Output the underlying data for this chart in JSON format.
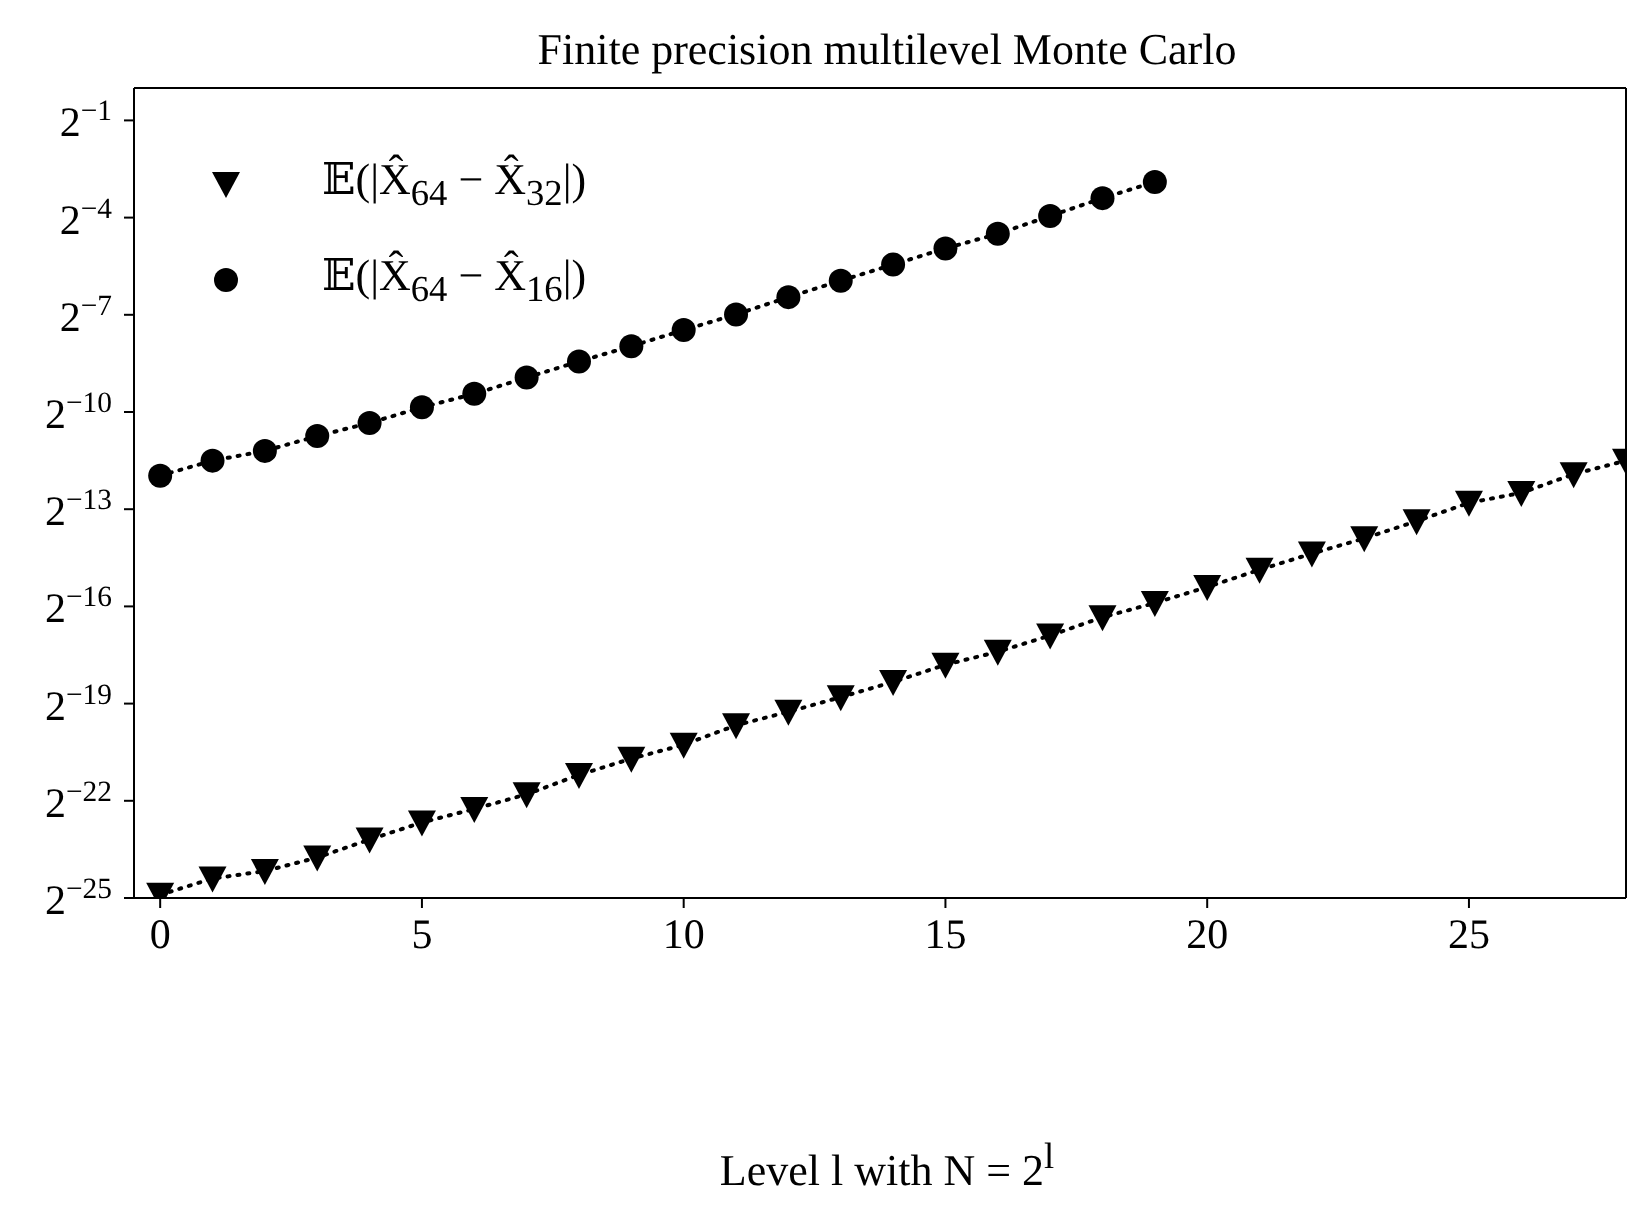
{
  "chart_data": {
    "type": "line",
    "title": "Finite precision multilevel Monte Carlo",
    "xlabel": "Level l with N = 2$^{l}$",
    "log": "y",
    "legend": "top left",
    "line_style": "dotted",
    "xlim": [
      -0.5,
      28
    ],
    "xticks": [
      0,
      5,
      10,
      15,
      20,
      25
    ],
    "ylim": [
      2.9802322387695312e-08,
      1
    ],
    "yticks": [
      {
        "value": 0.5,
        "label": "2$^{−1}$"
      },
      {
        "value": 0.0625,
        "label": "2$^{−4}$"
      },
      {
        "value": 0.0078125,
        "label": "2$^{−7}$"
      },
      {
        "value": 0.0009765625,
        "label": "2$^{−10}$"
      },
      {
        "value": 0.0001220703125,
        "label": "2$^{−13}$"
      },
      {
        "value": 1.52587890625e-05,
        "label": "2$^{−16}$"
      },
      {
        "value": 1.9073486328125e-06,
        "label": "2$^{−19}$"
      },
      {
        "value": 2.384185791015625e-07,
        "label": "2$^{−22}$"
      },
      {
        "value": 2.9802322387695312e-08,
        "label": "2$^{−25}$"
      }
    ],
    "series": [
      {
        "name": "𝔼(|X̂$_{64}$ − X̂$_{32}$|)",
        "color": "#000000",
        "marker": "triangle",
        "x": [
          0,
          1,
          2,
          3,
          4,
          5,
          6,
          7,
          8,
          9,
          10,
          11,
          12,
          13,
          14,
          15,
          16,
          17,
          18,
          19,
          20,
          21,
          22,
          23,
          24,
          25,
          26,
          27,
          28
        ],
        "values": [
          3.19e-08,
          4.52e-08,
          5.3e-08,
          7.09e-08,
          1.04e-07,
          1.5e-07,
          2e-07,
          2.74e-07,
          4.15e-07,
          5.87e-07,
          7.91e-07,
          1.2e-06,
          1.6e-06,
          2.19e-06,
          3.03e-06,
          4.38e-06,
          5.78e-06,
          8.18e-06,
          1.21e-05,
          1.64e-05,
          2.31e-05,
          3.34e-05,
          4.72e-05,
          6.54e-05,
          9.45e-05,
          0.00014,
          0.000173,
          0.000258,
          0.000345
        ]
      },
      {
        "name": "𝔼(|X̂$_{64}$ − X̂$_{16}$|)",
        "color": "#000000",
        "marker": "circle",
        "x": [
          0,
          1,
          2,
          3,
          4,
          5,
          6,
          7,
          8,
          9,
          10,
          11,
          12,
          13,
          14,
          15,
          16,
          17,
          18,
          19
        ],
        "values": [
          0.00025,
          0.000345,
          0.000425,
          0.000584,
          0.000772,
          0.00108,
          0.00144,
          0.00204,
          0.00288,
          0.00399,
          0.00564,
          0.00787,
          0.0114,
          0.0162,
          0.0229,
          0.0323,
          0.0442,
          0.0647,
          0.0948,
          0.134
        ]
      }
    ]
  }
}
